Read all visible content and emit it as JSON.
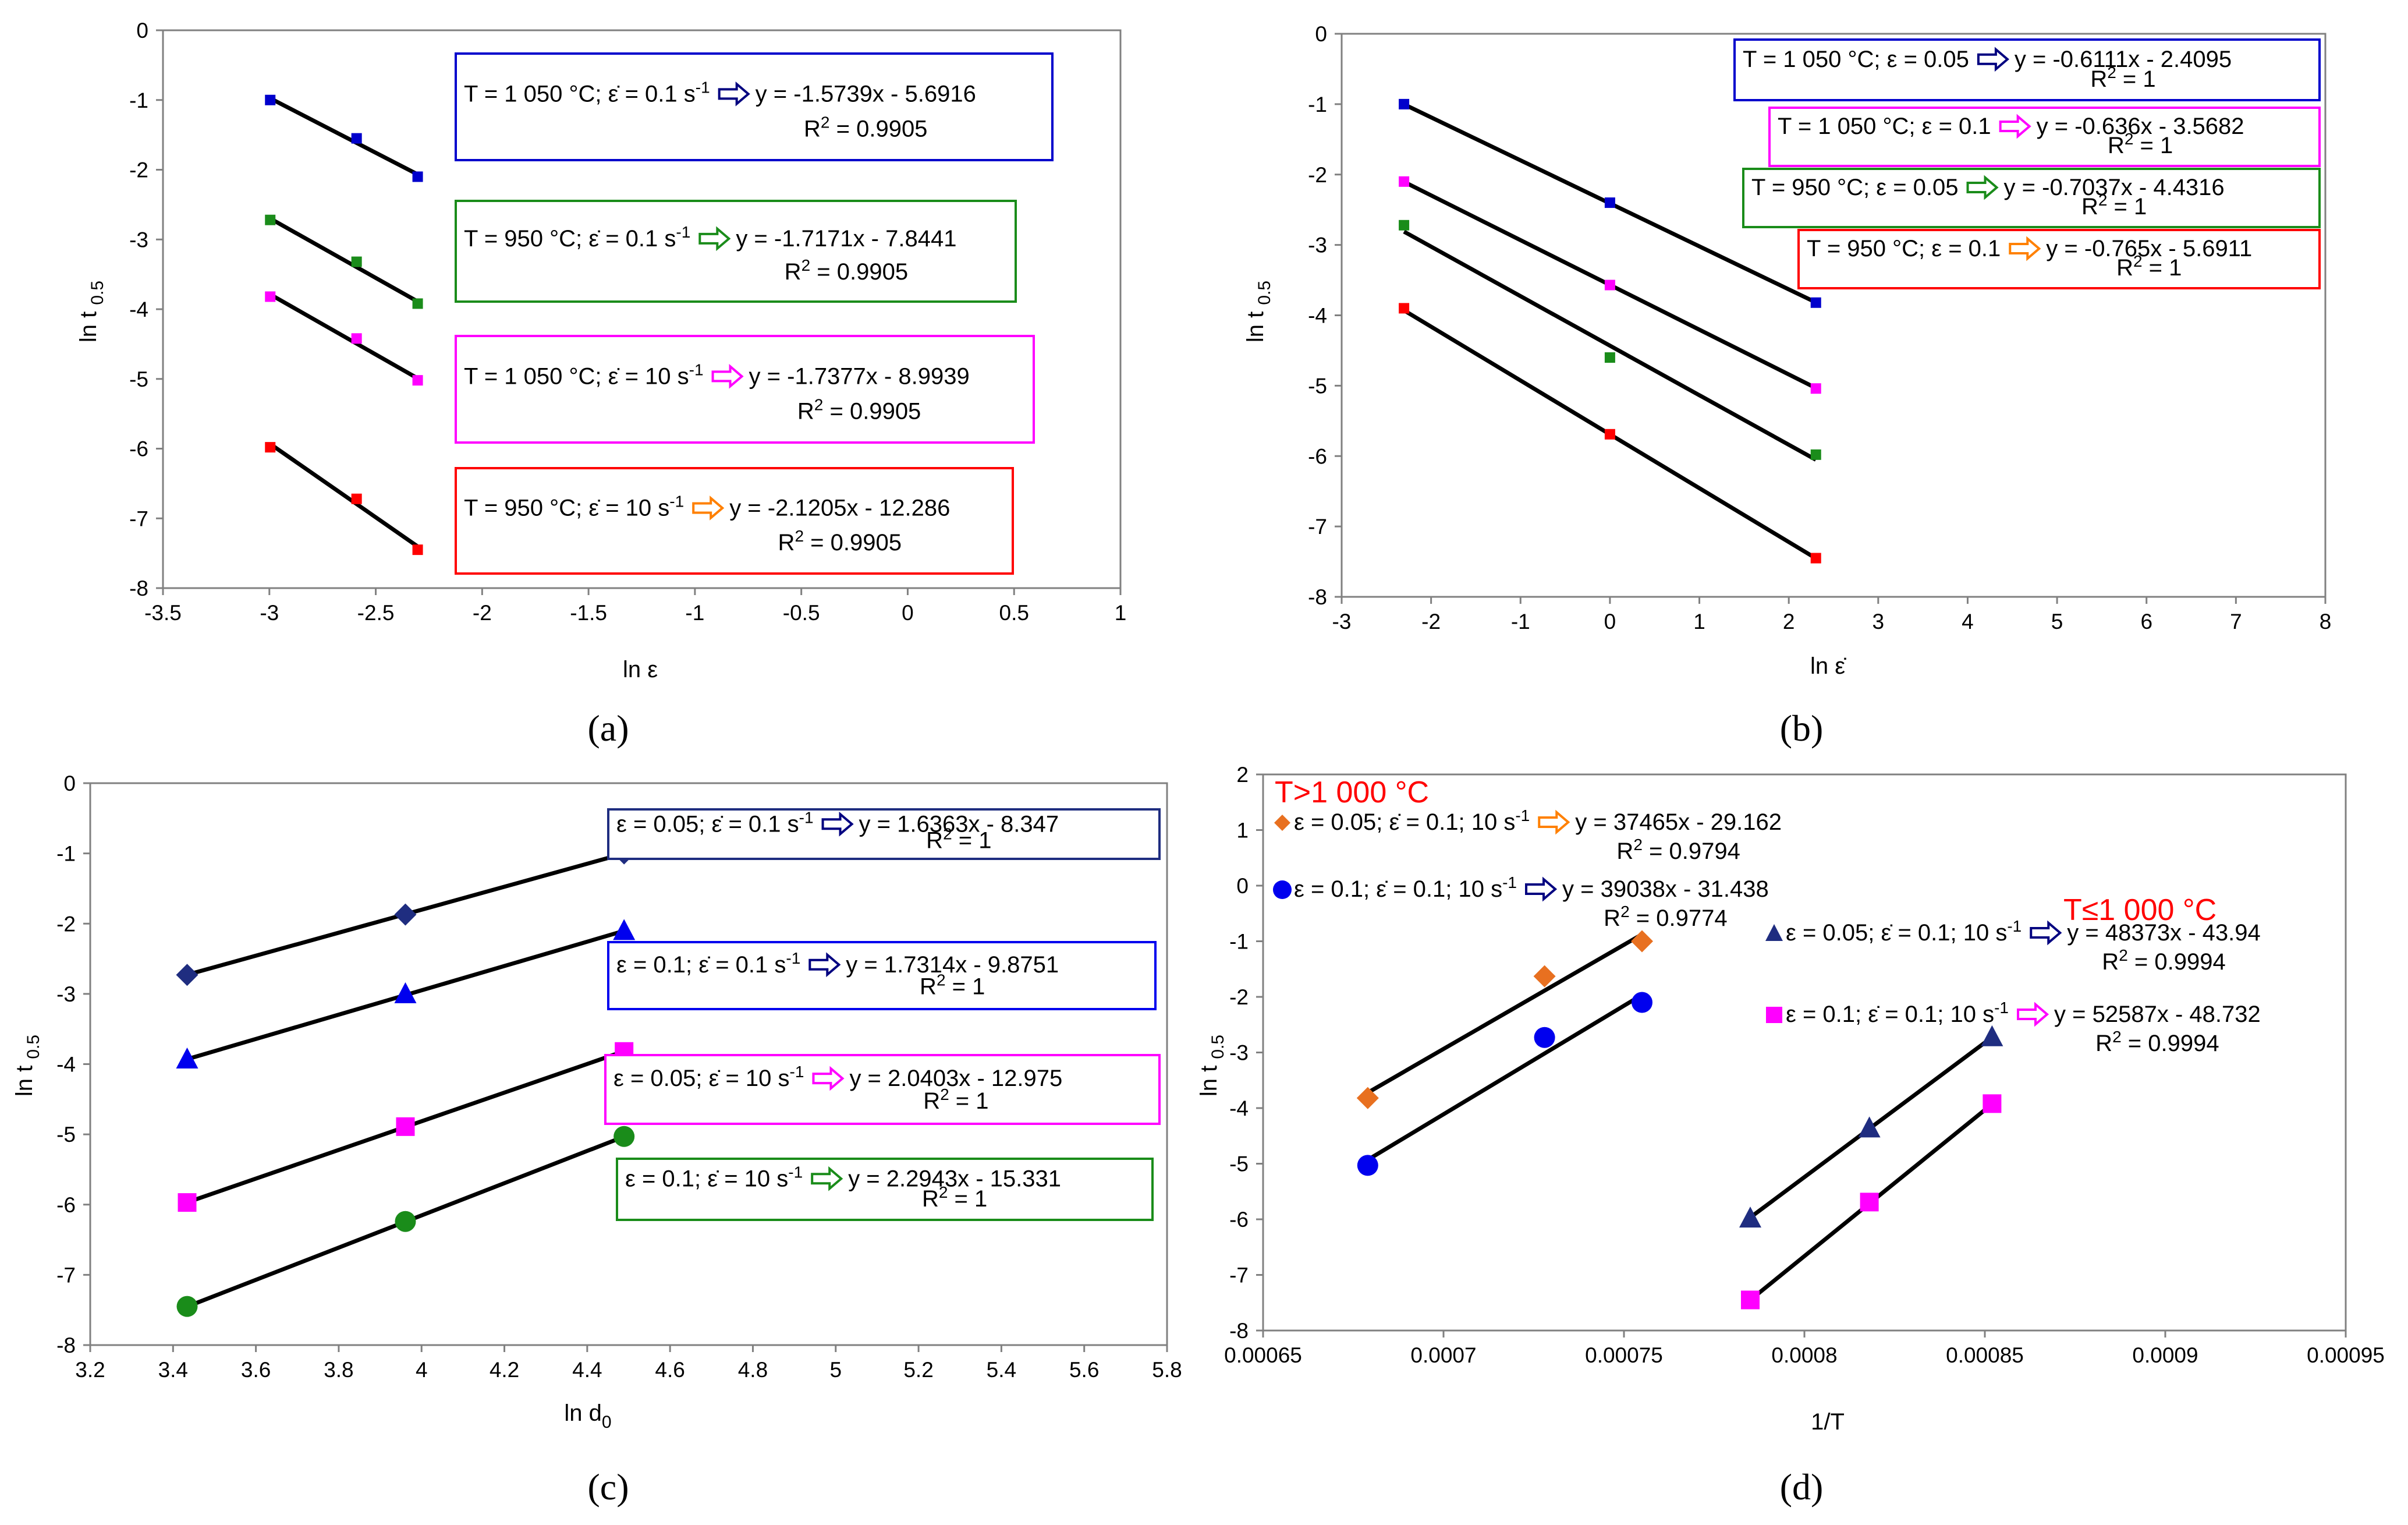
{
  "chart_data": [
    {
      "type": "scatter",
      "panel": "(a)",
      "xlabel": "ln ε",
      "ylabel": "ln t 0.5",
      "xlim": [
        -3.5,
        1
      ],
      "ylim": [
        -8,
        0
      ],
      "xticks": [
        "-3.5",
        "-3",
        "-2.5",
        "-2",
        "-1.5",
        "-1",
        "-0.5",
        "0",
        "0.5",
        "1"
      ],
      "yticks": [
        "0",
        "-1",
        "-2",
        "-3",
        "-4",
        "-5",
        "-6",
        "-7",
        "-8"
      ],
      "series": [
        {
          "name": "T = 1 050 °C; ε̇ = 0.1 s-1",
          "color": "#0000cc",
          "arrow_color": "#000080",
          "marker": "square",
          "x": [
            -2.996,
            -2.59,
            -2.303
          ],
          "y": [
            -1.0,
            -1.55,
            -2.1
          ],
          "fit": {
            "slope": -1.5739,
            "intercept": -5.6916
          },
          "equation": "y = -1.5739x - 5.6916",
          "r2": "R² = 0.9905"
        },
        {
          "name": "T = 950 °C; ε̇ = 0.1 s-1",
          "color": "#1a8c1a",
          "arrow_color": "#1a8c1a",
          "marker": "square",
          "x": [
            -2.996,
            -2.59,
            -2.303
          ],
          "y": [
            -2.72,
            -3.32,
            -3.92
          ],
          "fit": {
            "slope": -1.7171,
            "intercept": -7.8441
          },
          "equation": "y = -1.7171x - 7.8441",
          "r2": "R² = 0.9905"
        },
        {
          "name": "T = 1 050 °C; ε̇ = 10 s-1",
          "color": "#ff00ff",
          "arrow_color": "#ff00ff",
          "marker": "square",
          "x": [
            -2.996,
            -2.59,
            -2.303
          ],
          "y": [
            -3.82,
            -4.42,
            -5.02
          ],
          "fit": {
            "slope": -1.7377,
            "intercept": -8.9939
          },
          "equation": "y = -1.7377x - 8.9939",
          "r2": "R² = 0.9905"
        },
        {
          "name": "T = 950 °C; ε̇ = 10 s-1",
          "color": "#ff0000",
          "arrow_color": "#ff8000",
          "marker": "square",
          "x": [
            -2.996,
            -2.59,
            -2.303
          ],
          "y": [
            -5.98,
            -6.72,
            -7.45
          ],
          "fit": {
            "slope": -2.1205,
            "intercept": -12.286
          },
          "equation": "y = -2.1205x - 12.286",
          "r2": "R² = 0.9905"
        }
      ]
    },
    {
      "type": "scatter",
      "panel": "(b)",
      "xlabel": "ln ε̇",
      "ylabel": "ln t 0.5",
      "xlim": [
        -3,
        8
      ],
      "ylim": [
        -8,
        0
      ],
      "xticks": [
        "-3",
        "-2",
        "-1",
        "0",
        "1",
        "2",
        "3",
        "4",
        "5",
        "6",
        "7",
        "8"
      ],
      "yticks": [
        "0",
        "-1",
        "-2",
        "-3",
        "-4",
        "-5",
        "-6",
        "-7",
        "-8"
      ],
      "series": [
        {
          "name": "T = 1 050 °C; ε = 0.05",
          "color": "#0000cc",
          "arrow_color": "#000080",
          "marker": "square",
          "x": [
            -2.303,
            0,
            2.303
          ],
          "y": [
            -1.0,
            -2.4,
            -3.82
          ],
          "fit": {
            "slope": -0.6111,
            "intercept": -2.4095
          },
          "equation": "y = -0.6111x - 2.4095",
          "r2": "R² = 1"
        },
        {
          "name": "T = 1 050 °C; ε = 0.1",
          "color": "#ff00ff",
          "arrow_color": "#ff00ff",
          "marker": "square",
          "x": [
            -2.303,
            0,
            2.303
          ],
          "y": [
            -2.1,
            -3.57,
            -5.04
          ],
          "fit": {
            "slope": -0.636,
            "intercept": -3.5682
          },
          "equation": "y = -0.636x - 3.5682",
          "r2": "R² = 1"
        },
        {
          "name": "T = 950 °C; ε = 0.05",
          "color": "#1a8c1a",
          "arrow_color": "#1a8c1a",
          "marker": "square",
          "x": [
            -2.303,
            0,
            2.303
          ],
          "y": [
            -2.72,
            -4.6,
            -5.98
          ],
          "fit": {
            "slope": -0.7037,
            "intercept": -4.4316
          },
          "equation": "y = -0.7037x - 4.4316",
          "r2": "R² = 1"
        },
        {
          "name": "T = 950 °C; ε = 0.1",
          "color": "#ff0000",
          "arrow_color": "#ff8000",
          "marker": "square",
          "x": [
            -2.303,
            0,
            2.303
          ],
          "y": [
            -3.9,
            -5.69,
            -7.45
          ],
          "fit": {
            "slope": -0.765,
            "intercept": -5.6911
          },
          "equation": "y = -0.765x - 5.6911",
          "r2": "R² = 1"
        }
      ]
    },
    {
      "type": "scatter",
      "panel": "(c)",
      "xlabel": "ln d0",
      "ylabel": "ln t 0.5",
      "xlim": [
        3.2,
        5.8
      ],
      "ylim": [
        -8,
        0
      ],
      "xticks": [
        "3.2",
        "3.4",
        "3.6",
        "3.8",
        "4",
        "4.2",
        "4.4",
        "4.6",
        "4.8",
        "5",
        "5.2",
        "5.4",
        "5.6",
        "5.8"
      ],
      "yticks": [
        "0",
        "-1",
        "-2",
        "-3",
        "-4",
        "-5",
        "-6",
        "-7",
        "-8"
      ],
      "series": [
        {
          "name": "ε = 0.05; ε̇ = 0.1 s-1",
          "color": "#1f2d80",
          "arrow_color": "#000080",
          "marker": "diamond",
          "x": [
            3.434,
            3.961,
            4.489
          ],
          "y": [
            -2.73,
            -1.87,
            -1.0
          ],
          "fit": {
            "slope": 1.6363,
            "intercept": -8.347
          },
          "equation": "y = 1.6363x - 8.347",
          "r2": "R² = 1"
        },
        {
          "name": "ε = 0.1; ε̇ = 0.1 s-1",
          "color": "#0000ee",
          "arrow_color": "#000080",
          "marker": "triangle",
          "x": [
            3.434,
            3.961,
            4.489
          ],
          "y": [
            -3.93,
            -3.0,
            -2.1
          ],
          "fit": {
            "slope": 1.7314,
            "intercept": -9.8751
          },
          "equation": "y = 1.7314x - 9.8751",
          "r2": "R² = 1"
        },
        {
          "name": "ε = 0.05; ε̇ = 10 s-1",
          "color": "#ff00ff",
          "arrow_color": "#ff00ff",
          "marker": "square",
          "x": [
            3.434,
            3.961,
            4.489
          ],
          "y": [
            -5.97,
            -4.89,
            -3.82
          ],
          "fit": {
            "slope": 2.0403,
            "intercept": -12.975
          },
          "equation": "y = 2.0403x - 12.975",
          "r2": "R² = 1"
        },
        {
          "name": "ε = 0.1; ε̇ = 10 s-1",
          "color": "#1a8c1a",
          "arrow_color": "#1a8c1a",
          "marker": "circle",
          "x": [
            3.434,
            3.961,
            4.489
          ],
          "y": [
            -7.45,
            -6.24,
            -5.03
          ],
          "fit": {
            "slope": 2.2943,
            "intercept": -15.331
          },
          "equation": "y = 2.2943x - 15.331",
          "r2": "R² = 1"
        }
      ]
    },
    {
      "type": "scatter",
      "panel": "(d)",
      "xlabel": "1/T",
      "ylabel": "ln t 0.5",
      "xlim": [
        0.00065,
        0.00095
      ],
      "ylim": [
        -8,
        2
      ],
      "xticks": [
        "0.00065",
        "0.0007",
        "0.00075",
        "0.0008",
        "0.00085",
        "0.0009",
        "0.00095"
      ],
      "yticks": [
        "2",
        "1",
        "0",
        "-1",
        "-2",
        "-3",
        "-4",
        "-5",
        "-6",
        "-7",
        "-8"
      ],
      "annotations": [
        "T>1 000 °C",
        "T≤1 000 °C"
      ],
      "series": [
        {
          "name": "ε = 0.05; ε̇ = 0.1; 10 s-1",
          "group": "T>1 000 °C",
          "color": "#e87020",
          "arrow_color": "#ff8000",
          "marker": "diamond",
          "x": [
            0.000679,
            0.000728,
            0.000755
          ],
          "y": [
            -3.82,
            -1.63,
            -1.0
          ],
          "fit": {
            "slope": 37465,
            "intercept": -29.162
          },
          "equation": "y = 37465x - 29.162",
          "r2": "R² = 0.9794"
        },
        {
          "name": "ε = 0.1; ε̇ = 0.1; 10 s-1",
          "group": "T>1 000 °C",
          "color": "#0000ee",
          "arrow_color": "#000080",
          "marker": "circle",
          "x": [
            0.000679,
            0.000728,
            0.000755
          ],
          "y": [
            -5.03,
            -2.73,
            -2.1
          ],
          "fit": {
            "slope": 39038,
            "intercept": -31.438
          },
          "equation": "y = 39038x - 31.438",
          "r2": "R² = 0.9774"
        },
        {
          "name": "ε = 0.05; ε̇ = 0.1; 10 s-1",
          "group": "T≤1 000 °C",
          "color": "#1f2d80",
          "arrow_color": "#000080",
          "marker": "triangle",
          "x": [
            0.000785,
            0.000818,
            0.000852
          ],
          "y": [
            -5.98,
            -4.36,
            -2.72
          ],
          "fit": {
            "slope": 48373,
            "intercept": -43.94
          },
          "equation": "y = 48373x - 43.94",
          "r2": "R² = 0.9994"
        },
        {
          "name": "ε = 0.1; ε̇ = 0.1; 10 s-1",
          "group": "T≤1 000 °C",
          "color": "#ff00ff",
          "arrow_color": "#ff00ff",
          "marker": "square",
          "x": [
            0.000785,
            0.000818,
            0.000852
          ],
          "y": [
            -7.45,
            -5.69,
            -3.92
          ],
          "fit": {
            "slope": 52587,
            "intercept": -48.732
          },
          "equation": "y = 52587x - 48.732",
          "r2": "R² = 0.9994"
        }
      ]
    }
  ]
}
